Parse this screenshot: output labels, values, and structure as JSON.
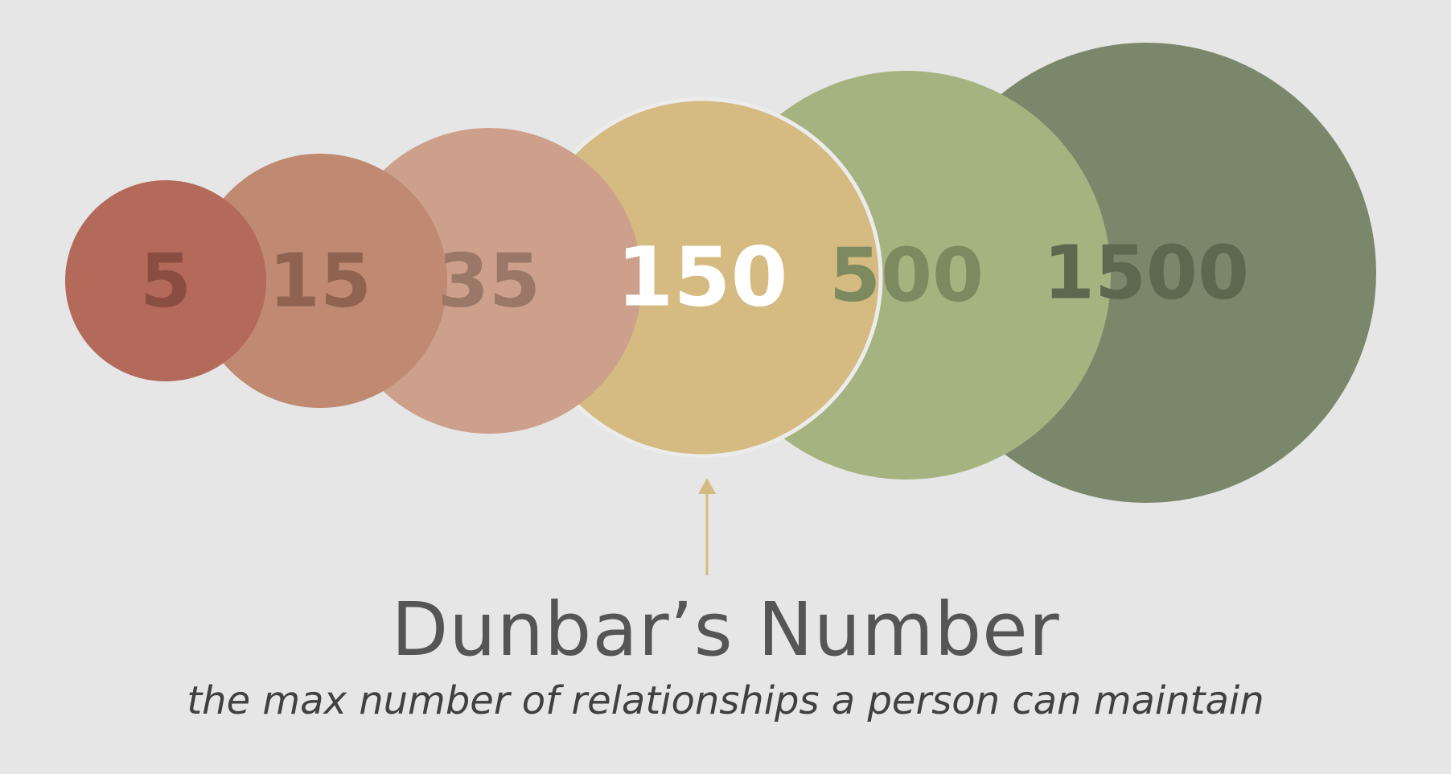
{
  "diagram": {
    "circles": [
      {
        "label": "5",
        "fill": "#b46a5b",
        "text_color": "#8a4d42"
      },
      {
        "label": "15",
        "fill": "#c08a72",
        "text_color": "#8f6350"
      },
      {
        "label": "35",
        "fill": "#cda08c",
        "text_color": "#9a7766"
      },
      {
        "label": "150",
        "fill": "#d5bb82",
        "text_color": "#ffffff"
      },
      {
        "label": "500",
        "fill": "#a5b380",
        "text_color": "#7d8a60"
      },
      {
        "label": "1500",
        "fill": "#7a876b",
        "text_color": "#5d684f"
      }
    ],
    "highlight_color": "#d5bb82",
    "title": "Dunbar’s Number",
    "subtitle": "the max number of relationships a person can maintain"
  }
}
